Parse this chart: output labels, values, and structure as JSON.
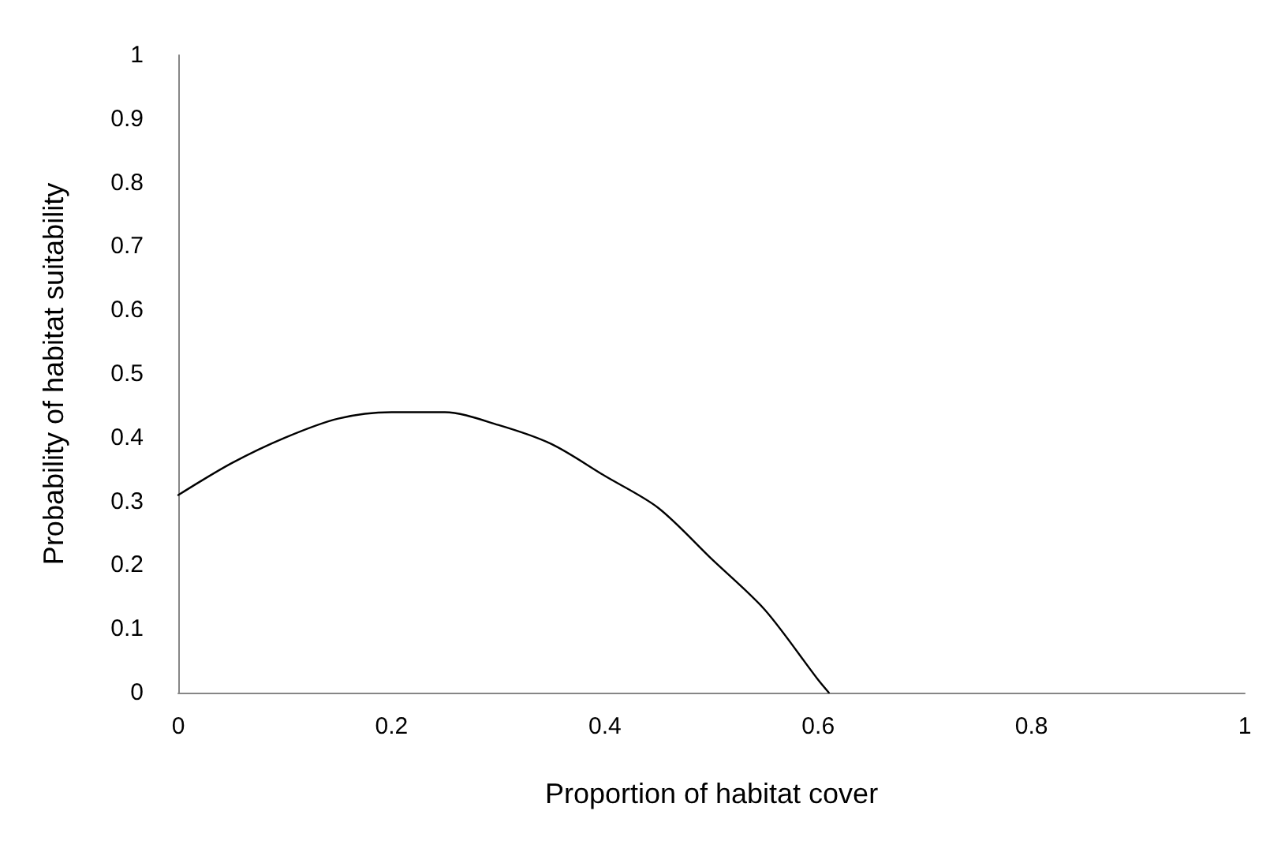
{
  "chart_data": {
    "type": "line",
    "xlabel": "Proportion of habitat cover",
    "ylabel": "Probability of habitat suitability",
    "x": [
      0,
      0.05,
      0.1,
      0.15,
      0.2,
      0.25,
      0.3,
      0.35,
      0.4,
      0.45,
      0.5,
      0.55,
      0.6,
      0.61
    ],
    "series": [
      {
        "color": "#000000",
        "values": [
          0.31,
          0.36,
          0.4,
          0.43,
          0.44,
          0.44,
          0.42,
          0.39,
          0.34,
          0.29,
          0.21,
          0.13,
          0.02,
          0
        ]
      }
    ],
    "xlim": [
      0,
      1
    ],
    "xticks": [
      0,
      0.2,
      0.4,
      0.6,
      0.8,
      1
    ],
    "ylim": [
      0,
      1
    ],
    "yticks": [
      0,
      0.1,
      0.2,
      0.3,
      0.4,
      0.5,
      0.6,
      0.7,
      0.8,
      0.9,
      1
    ],
    "grid": false,
    "marker": "none",
    "line_style": "solid"
  }
}
